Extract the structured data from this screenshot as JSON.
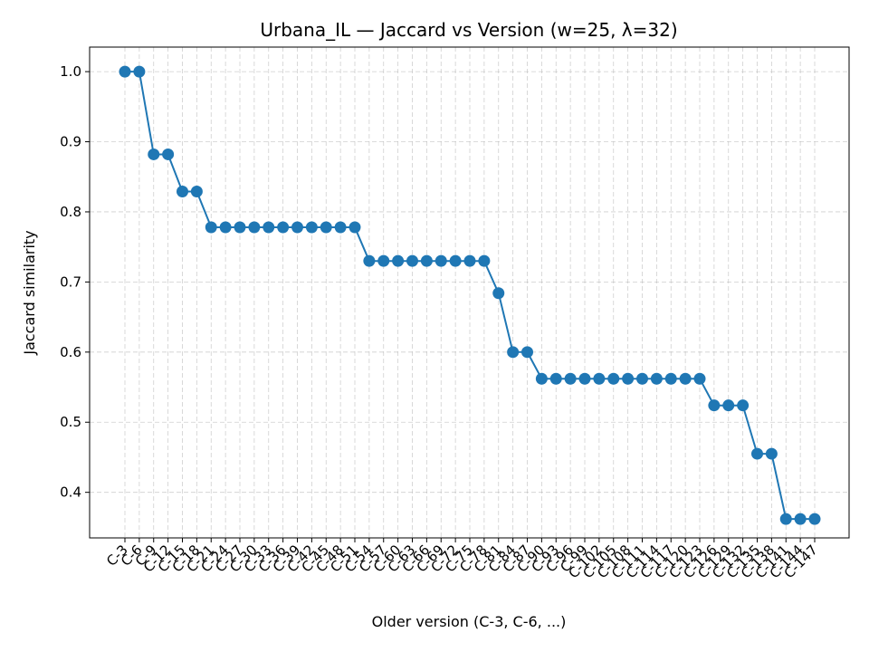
{
  "chart_data": {
    "type": "line",
    "title": "Urbana_IL — Jaccard vs Version (w=25, λ=32)",
    "xlabel": "Older version (C-3, C-6, ...)",
    "ylabel": "Jaccard similarity",
    "ylim": [
      0.335,
      1.035
    ],
    "yticks": [
      "0.4",
      "0.5",
      "0.6",
      "0.7",
      "0.8",
      "0.9",
      "1.0"
    ],
    "grid": true,
    "color": "#1f77b4",
    "categories": [
      "C-3",
      "C-6",
      "C-9",
      "C-12",
      "C-15",
      "C-18",
      "C-21",
      "C-24",
      "C-27",
      "C-30",
      "C-33",
      "C-36",
      "C-39",
      "C-42",
      "C-45",
      "C-48",
      "C-51",
      "C-54",
      "C-57",
      "C-60",
      "C-63",
      "C-66",
      "C-69",
      "C-72",
      "C-75",
      "C-78",
      "C-81",
      "C-84",
      "C-87",
      "C-90",
      "C-93",
      "C-96",
      "C-99",
      "C-102",
      "C-105",
      "C-108",
      "C-111",
      "C-114",
      "C-117",
      "C-120",
      "C-123",
      "C-126",
      "C-129",
      "C-132",
      "C-135",
      "C-138",
      "C-141",
      "C-144",
      "C-147"
    ],
    "values": [
      1.0,
      1.0,
      0.882,
      0.882,
      0.829,
      0.829,
      0.778,
      0.778,
      0.778,
      0.778,
      0.778,
      0.778,
      0.778,
      0.778,
      0.778,
      0.778,
      0.778,
      0.73,
      0.73,
      0.73,
      0.73,
      0.73,
      0.73,
      0.73,
      0.73,
      0.73,
      0.684,
      0.6,
      0.6,
      0.562,
      0.562,
      0.562,
      0.562,
      0.562,
      0.562,
      0.562,
      0.562,
      0.562,
      0.562,
      0.562,
      0.562,
      0.524,
      0.524,
      0.524,
      0.455,
      0.455,
      0.362,
      0.362,
      0.362
    ]
  }
}
